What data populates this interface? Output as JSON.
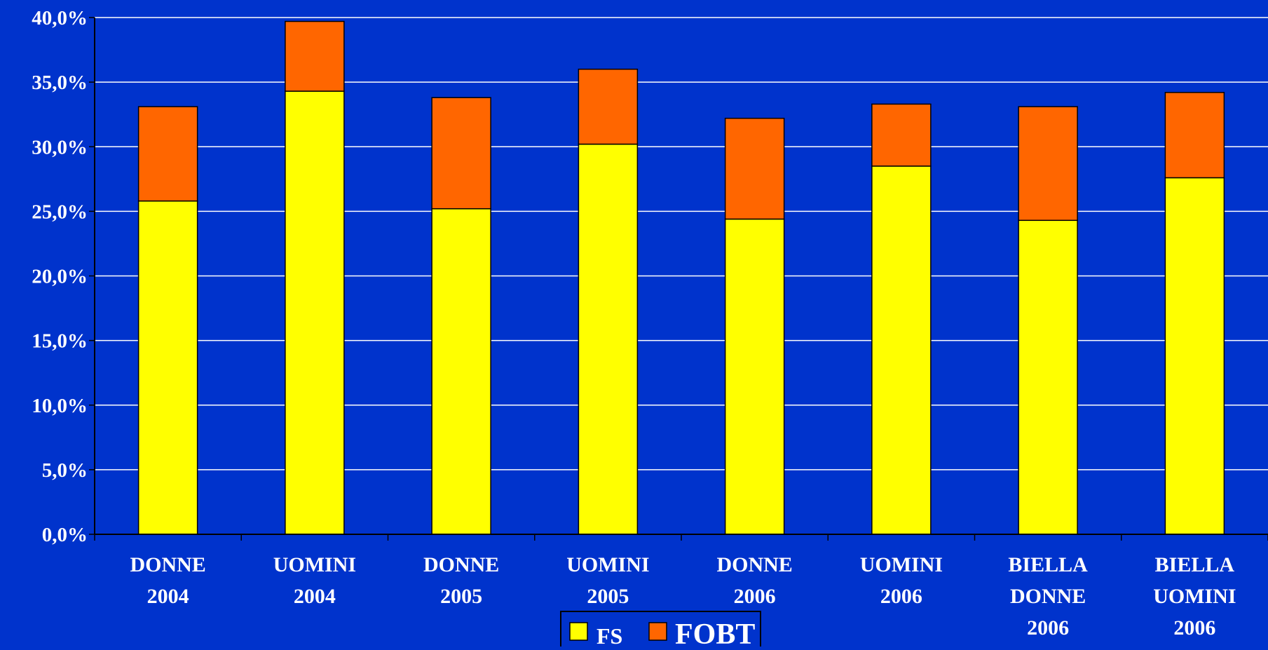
{
  "chart_data": {
    "type": "bar",
    "stacked": true,
    "categories": [
      [
        "DONNE",
        "2004"
      ],
      [
        "UOMINI",
        "2004"
      ],
      [
        "DONNE",
        "2005"
      ],
      [
        "UOMINI",
        "2005"
      ],
      [
        "DONNE",
        "2006"
      ],
      [
        "UOMINI",
        "2006"
      ],
      [
        "BIELLA",
        "DONNE",
        "2006"
      ],
      [
        "BIELLA",
        "UOMINI",
        "2006"
      ]
    ],
    "series": [
      {
        "name": "FS",
        "color": "#ffff00",
        "values": [
          25.8,
          34.3,
          25.2,
          30.2,
          24.4,
          28.5,
          24.3,
          27.6
        ]
      },
      {
        "name": "FOBT",
        "color": "#ff6600",
        "values": [
          7.3,
          5.4,
          8.6,
          5.8,
          7.8,
          4.8,
          8.8,
          6.6
        ]
      }
    ],
    "ylim": [
      0,
      40
    ],
    "yticks": [
      "0,0%",
      "5,0%",
      "10,0%",
      "15,0%",
      "20,0%",
      "25,0%",
      "30,0%",
      "35,0%",
      "40,0%"
    ],
    "grid": true,
    "legend_position": "bottom-center",
    "background_color": "#0033cc",
    "text_color": "#ffffff"
  }
}
